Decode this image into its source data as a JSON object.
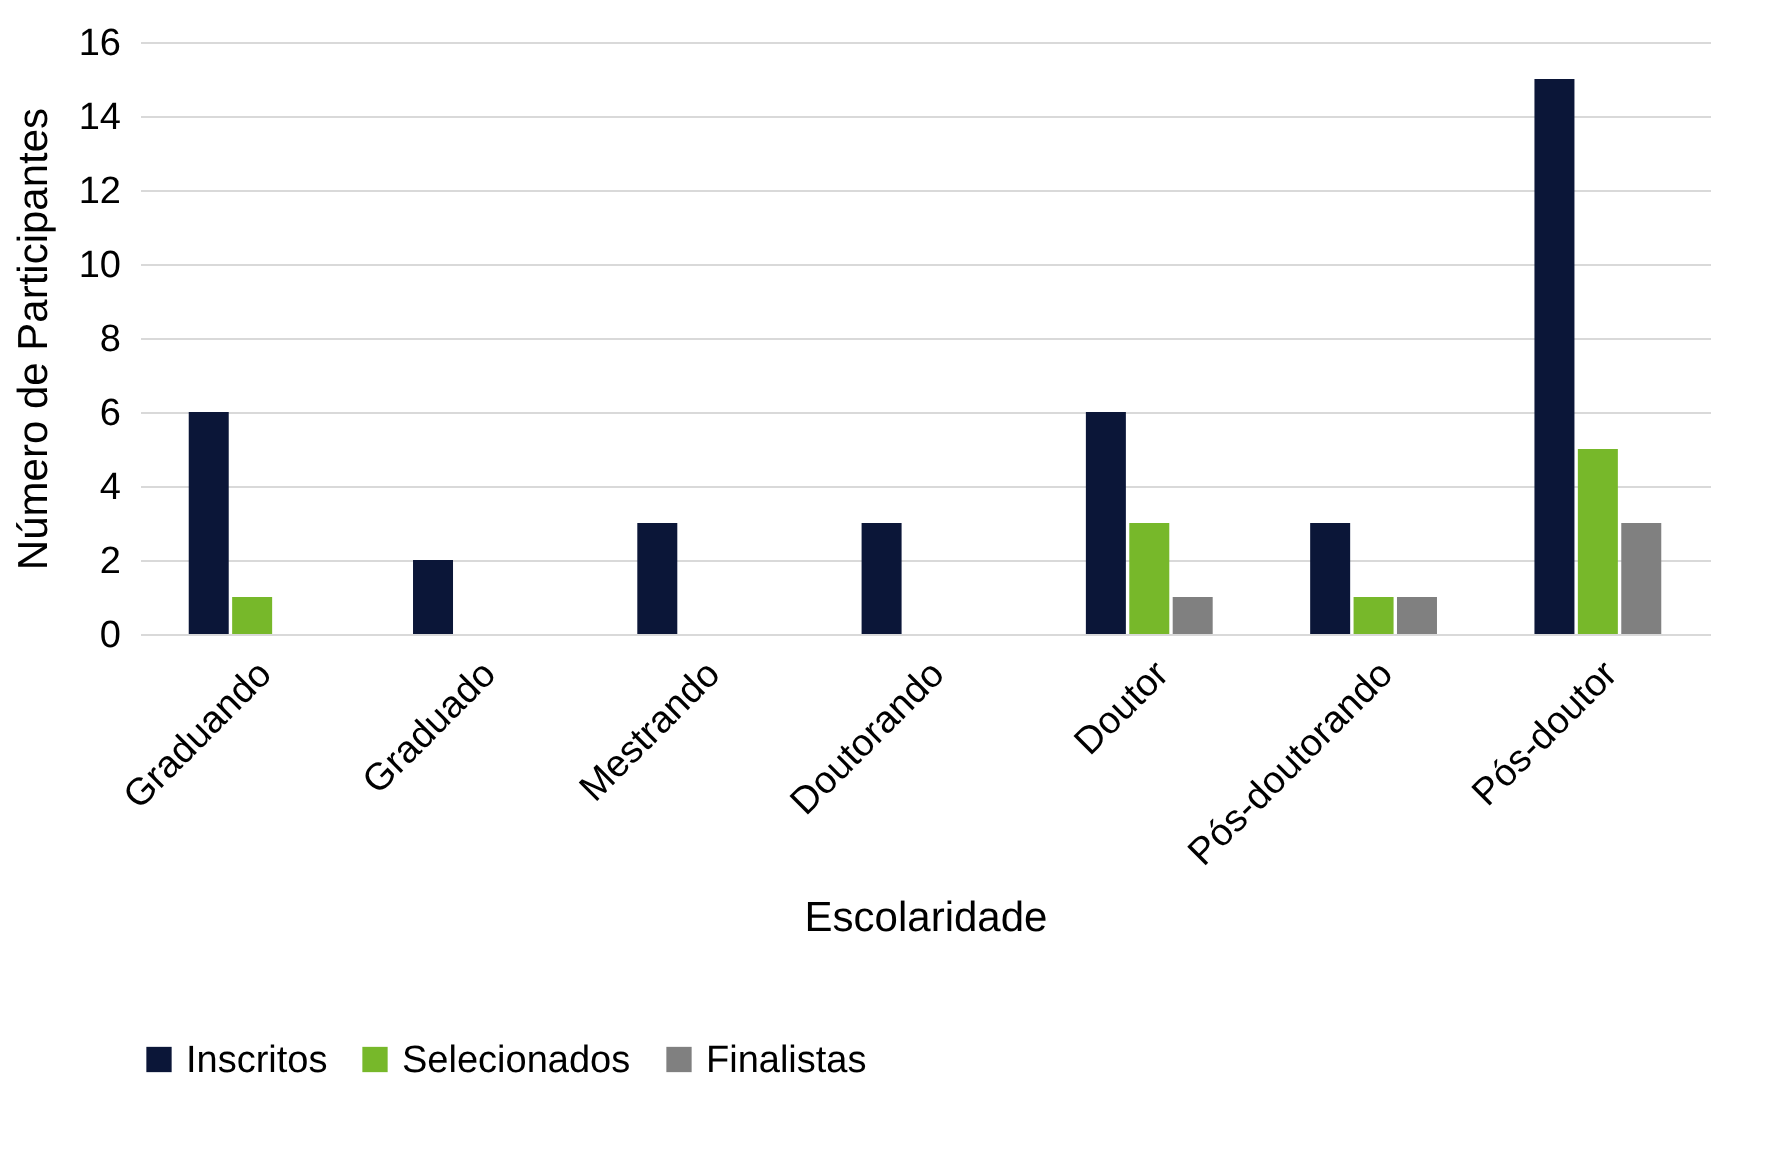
{
  "chart_data": {
    "type": "bar",
    "xlabel": "Escolaridade",
    "ylabel": "Número de Participantes",
    "categories": [
      "Graduando",
      "Graduado",
      "Mestrando",
      "Doutorando",
      "Doutor",
      "Pós-doutorando",
      "Pós-doutor"
    ],
    "series": [
      {
        "name": "Inscritos",
        "color": "#0b1638",
        "values": [
          6,
          2,
          3,
          3,
          6,
          3,
          15
        ]
      },
      {
        "name": "Selecionados",
        "color": "#77b82a",
        "values": [
          1,
          0,
          0,
          0,
          3,
          1,
          5
        ]
      },
      {
        "name": "Finalistas",
        "color": "#808080",
        "values": [
          0,
          0,
          0,
          0,
          1,
          1,
          3
        ]
      }
    ],
    "ylim": [
      0,
      16
    ],
    "yticks": [
      0,
      2,
      4,
      6,
      8,
      10,
      12,
      14,
      16
    ],
    "grid": "y",
    "legend": "bottom"
  }
}
